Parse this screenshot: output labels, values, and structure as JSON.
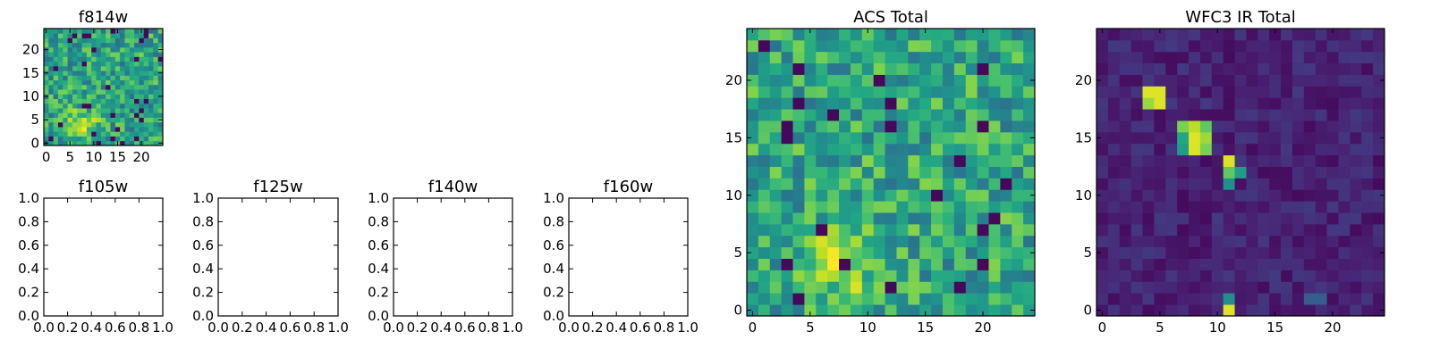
{
  "figure": {
    "background": "#ffffff",
    "colormap": "viridis"
  },
  "chart_data": [
    {
      "type": "heatmap",
      "title": "f814w",
      "grid_size": 25,
      "xlim": [
        0,
        24
      ],
      "ylim": [
        0,
        24
      ],
      "xticks": [
        0,
        5,
        10,
        15,
        20
      ],
      "yticks": [
        0,
        5,
        10,
        15,
        20
      ],
      "pattern": {
        "seed": 11,
        "base": 0.58,
        "noise": 0.22,
        "blob": [
          [
            8,
            4,
            6,
            0.25
          ]
        ],
        "dark_frac": 0.05
      }
    },
    {
      "type": "empty",
      "title": "f105w",
      "xlim": [
        0,
        1
      ],
      "ylim": [
        0,
        1
      ],
      "xticks": [
        "0.0",
        "0.2",
        "0.4",
        "0.6",
        "0.8",
        "1.0"
      ],
      "yticks": [
        "0.0",
        "0.2",
        "0.4",
        "0.6",
        "0.8",
        "1.0"
      ]
    },
    {
      "type": "empty",
      "title": "f125w",
      "xlim": [
        0,
        1
      ],
      "ylim": [
        0,
        1
      ],
      "xticks": [
        "0.0",
        "0.2",
        "0.4",
        "0.6",
        "0.8",
        "1.0"
      ],
      "yticks": [
        "0.0",
        "0.2",
        "0.4",
        "0.6",
        "0.8",
        "1.0"
      ]
    },
    {
      "type": "empty",
      "title": "f140w",
      "xlim": [
        0,
        1
      ],
      "ylim": [
        0,
        1
      ],
      "xticks": [
        "0.0",
        "0.2",
        "0.4",
        "0.6",
        "0.8",
        "1.0"
      ],
      "yticks": [
        "0.0",
        "0.2",
        "0.4",
        "0.6",
        "0.8",
        "1.0"
      ]
    },
    {
      "type": "empty",
      "title": "f160w",
      "xlim": [
        0,
        1
      ],
      "ylim": [
        0,
        1
      ],
      "xticks": [
        "0.0",
        "0.2",
        "0.4",
        "0.6",
        "0.8",
        "1.0"
      ],
      "yticks": [
        "0.0",
        "0.2",
        "0.4",
        "0.6",
        "0.8",
        "1.0"
      ]
    },
    {
      "type": "heatmap",
      "title": "ACS Total",
      "grid_size": 25,
      "xlim": [
        0,
        24
      ],
      "ylim": [
        0,
        24
      ],
      "xticks": [
        0,
        5,
        10,
        15,
        20
      ],
      "yticks": [
        0,
        5,
        10,
        15,
        20
      ],
      "pattern": {
        "seed": 7,
        "base": 0.6,
        "noise": 0.22,
        "blob": [
          [
            8,
            4,
            5,
            0.3
          ]
        ],
        "dark_frac": 0.03
      }
    },
    {
      "type": "heatmap",
      "title": "WFC3 IR Total",
      "grid_size": 25,
      "xlim": [
        0,
        24
      ],
      "ylim": [
        0,
        24
      ],
      "xticks": [
        0,
        5,
        10,
        15,
        20
      ],
      "yticks": [
        0,
        5,
        10,
        15,
        20
      ],
      "pattern": {
        "seed": 3,
        "base": 0.1,
        "noise": 0.07,
        "dark_frac": 0.0
      },
      "hot_pixels": [
        {
          "x": 4,
          "y": 18,
          "v": 0.95
        },
        {
          "x": 5,
          "y": 18,
          "v": 0.95
        },
        {
          "x": 4,
          "y": 19,
          "v": 0.95
        },
        {
          "x": 5,
          "y": 19,
          "v": 0.95
        },
        {
          "x": 4,
          "y": 18,
          "v": 0.85
        },
        {
          "x": 7,
          "y": 15,
          "v": 0.6
        },
        {
          "x": 8,
          "y": 15,
          "v": 0.95
        },
        {
          "x": 9,
          "y": 15,
          "v": 0.85
        },
        {
          "x": 7,
          "y": 16,
          "v": 0.8
        },
        {
          "x": 8,
          "y": 16,
          "v": 0.9
        },
        {
          "x": 9,
          "y": 16,
          "v": 0.75
        },
        {
          "x": 7,
          "y": 14,
          "v": 0.55
        },
        {
          "x": 8,
          "y": 14,
          "v": 0.95
        },
        {
          "x": 9,
          "y": 14,
          "v": 0.8
        },
        {
          "x": 11,
          "y": 13,
          "v": 0.95
        },
        {
          "x": 11,
          "y": 12,
          "v": 0.75
        },
        {
          "x": 12,
          "y": 12,
          "v": 0.55
        },
        {
          "x": 11,
          "y": 11,
          "v": 0.5
        },
        {
          "x": 11,
          "y": 1,
          "v": 0.5
        },
        {
          "x": 11,
          "y": 0,
          "v": 0.95
        },
        {
          "x": 18,
          "y": 1,
          "v": 0.3
        },
        {
          "x": 19,
          "y": 1,
          "v": 0.3
        }
      ]
    }
  ]
}
